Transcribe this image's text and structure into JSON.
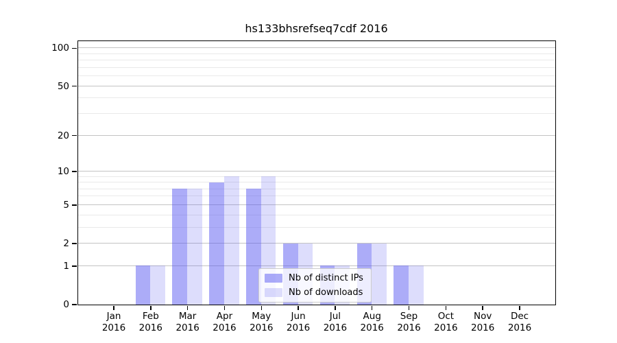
{
  "chart_data": {
    "type": "bar",
    "title": "hs133bhsrefseq7cdf 2016",
    "categories": [
      "Jan",
      "Feb",
      "Mar",
      "Apr",
      "May",
      "Jun",
      "Jul",
      "Aug",
      "Sep",
      "Oct",
      "Nov",
      "Dec"
    ],
    "category_year": "2016",
    "series": [
      {
        "name": "Nb of distinct IPs",
        "color": "#a8a8f4",
        "fill": "rgba(85,85,240,0.49)",
        "values": [
          0,
          1,
          7,
          8,
          7,
          2,
          1,
          2,
          1,
          0,
          0,
          0
        ]
      },
      {
        "name": "Nb of downloads",
        "color": "#dcdcf9",
        "fill": "rgba(85,85,240,0.20)",
        "values": [
          0,
          1,
          7,
          9,
          9,
          2,
          1,
          2,
          1,
          0,
          0,
          0
        ]
      }
    ],
    "yscale": "log10(1+value)",
    "ylim": [
      0,
      114
    ],
    "yticks": [
      0,
      1,
      2,
      5,
      10,
      20,
      50,
      100
    ],
    "yticks_minor": [
      3,
      4,
      6,
      7,
      8,
      9,
      30,
      40,
      60,
      70,
      80,
      90
    ],
    "xlabel": "",
    "ylabel": "",
    "grid": true,
    "legend_position": "lower center",
    "legend_entries": [
      "Nb of distinct IPs",
      "Nb of downloads"
    ]
  },
  "colors": {
    "background": "#ffffff",
    "axis": "#000000",
    "grid_major": "#c3c3c3",
    "grid_minor": "#e9e9e9",
    "legend_border": "#cccccc"
  }
}
